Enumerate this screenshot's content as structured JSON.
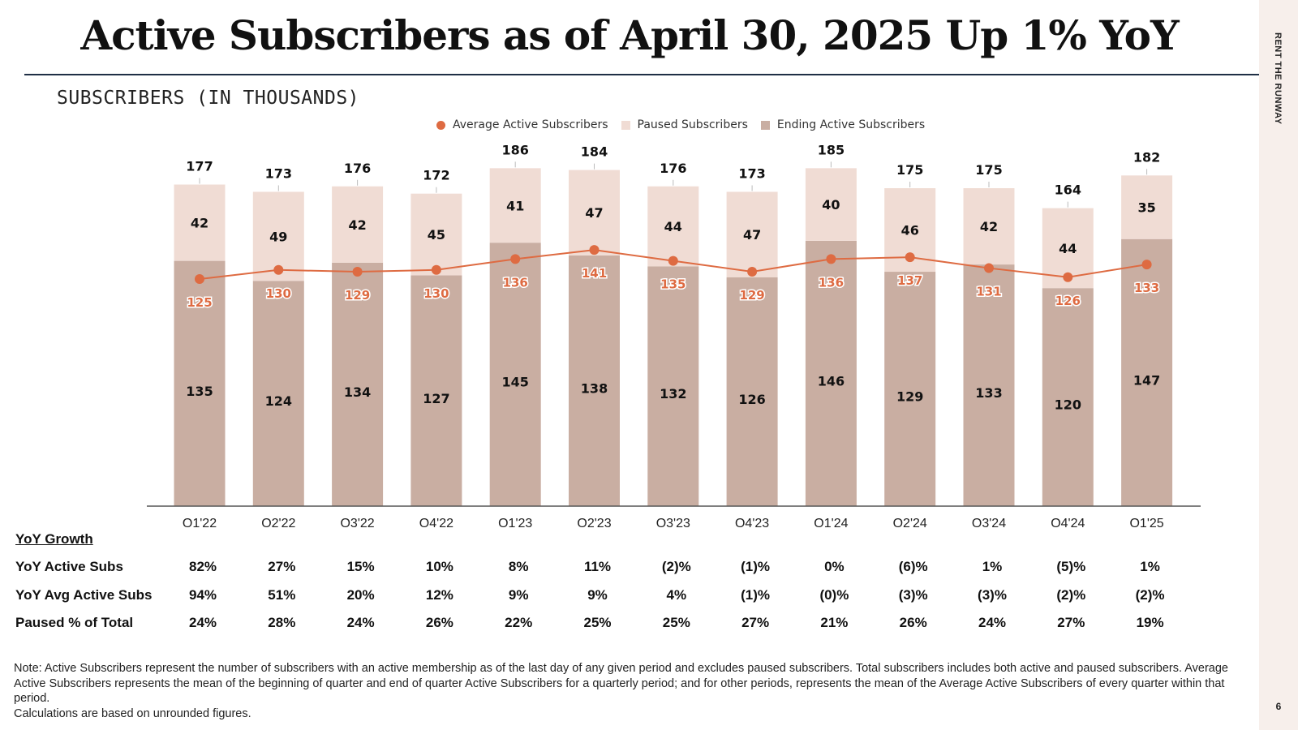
{
  "title": "Active Subscribers as of April 30, 2025 Up 1% YoY",
  "subtitle": "SUBSCRIBERS (IN THOUSANDS)",
  "brand": "RENT THE RUNWAY",
  "page_number": "6",
  "colors": {
    "ending": "#c9aea2",
    "paused": "#f0dcd4",
    "line": "#de6b42",
    "axis": "#555555"
  },
  "chart_data": {
    "type": "bar",
    "stacked": true,
    "categories": [
      "Q1'22",
      "Q2'22",
      "Q3'22",
      "Q4'22",
      "Q1'23",
      "Q2'23",
      "Q3'23",
      "Q4'23",
      "Q1'24",
      "Q2'24",
      "Q3'24",
      "Q4'24",
      "Q1'25"
    ],
    "series": [
      {
        "name": "Ending Active Subscribers",
        "kind": "bar",
        "values": [
          135,
          124,
          134,
          127,
          145,
          138,
          132,
          126,
          146,
          129,
          133,
          120,
          147
        ]
      },
      {
        "name": "Paused Subscribers",
        "kind": "bar",
        "values": [
          42,
          49,
          42,
          45,
          41,
          47,
          44,
          47,
          40,
          46,
          42,
          44,
          35
        ]
      },
      {
        "name": "Average Active Subscribers",
        "kind": "line",
        "values": [
          125,
          130,
          129,
          130,
          136,
          141,
          135,
          129,
          136,
          137,
          131,
          126,
          133
        ]
      }
    ],
    "totals": [
      177,
      173,
      176,
      172,
      186,
      184,
      176,
      173,
      185,
      175,
      175,
      164,
      182
    ],
    "legend": [
      "Average Active Subscribers",
      "Paused Subscribers",
      "Ending Active Subscribers"
    ],
    "ylim": [
      0,
      195
    ]
  },
  "table": {
    "heading": "YoY Growth",
    "rows": [
      {
        "label": "YoY Active Subs",
        "values": [
          "82%",
          "27%",
          "15%",
          "10%",
          "8%",
          "11%",
          "(2)%",
          "(1)%",
          "0%",
          "(6)%",
          "1%",
          "(5)%",
          "1%"
        ]
      },
      {
        "label": "YoY Avg Active Subs",
        "values": [
          "94%",
          "51%",
          "20%",
          "12%",
          "9%",
          "9%",
          "4%",
          "(1)%",
          "(0)%",
          "(3)%",
          "(3)%",
          "(2)%",
          "(2)%"
        ]
      },
      {
        "label": "Paused % of Total",
        "values": [
          "24%",
          "28%",
          "24%",
          "26%",
          "22%",
          "25%",
          "25%",
          "27%",
          "21%",
          "26%",
          "24%",
          "27%",
          "19%"
        ]
      }
    ]
  },
  "note": {
    "line1": "Note: Active Subscribers represent the number of subscribers with an active membership as of the last day of any given period and excludes paused subscribers. Total subscribers includes both active and paused subscribers. Average Active Subscribers represents the mean of the beginning of quarter and end of quarter Active Subscribers for a quarterly period; and for other periods, represents the mean of the Average Active Subscribers of every quarter within that period.",
    "line2": "Calculations are based on unrounded figures."
  }
}
